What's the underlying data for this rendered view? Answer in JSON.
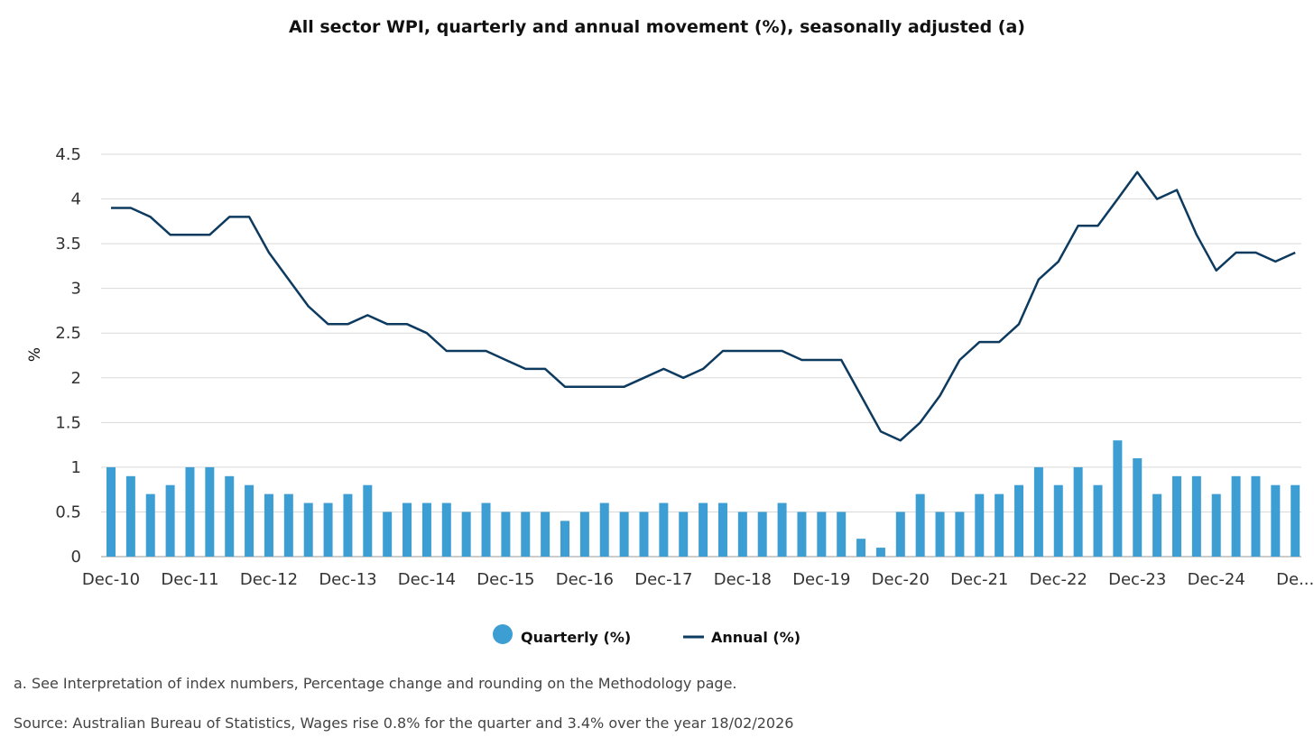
{
  "chart_data": {
    "type": "bar",
    "title": "All sector WPI, quarterly and annual movement (%), seasonally adjusted (a)",
    "ylabel": "%",
    "ylim": [
      0,
      4.5
    ],
    "yticks": [
      "0",
      "0.5",
      "1",
      "1.5",
      "2",
      "2.5",
      "3",
      "3.5",
      "4",
      "4.5"
    ],
    "grid": true,
    "legend_position": "bottom-center",
    "x_tick_labels": [
      "Dec-10",
      "Dec-11",
      "Dec-12",
      "Dec-13",
      "Dec-14",
      "Dec-15",
      "Dec-16",
      "Dec-17",
      "Dec-18",
      "Dec-19",
      "Dec-20",
      "Dec-21",
      "Dec-22",
      "Dec-23",
      "Dec-24",
      "De..."
    ],
    "series": [
      {
        "name": "Quarterly (%)",
        "type": "bar",
        "color": "#3d9ed4",
        "values": [
          1.0,
          0.9,
          0.7,
          0.8,
          1.0,
          1.0,
          0.9,
          0.8,
          0.7,
          0.7,
          0.6,
          0.6,
          0.7,
          0.8,
          0.5,
          0.6,
          0.6,
          0.6,
          0.5,
          0.6,
          0.5,
          0.5,
          0.5,
          0.4,
          0.5,
          0.6,
          0.5,
          0.5,
          0.6,
          0.5,
          0.6,
          0.6,
          0.5,
          0.5,
          0.6,
          0.5,
          0.5,
          0.5,
          0.2,
          0.1,
          0.5,
          0.7,
          0.5,
          0.5,
          0.7,
          0.7,
          0.8,
          1.0,
          0.8,
          1.0,
          0.8,
          1.3,
          1.1,
          0.7,
          0.9,
          0.9,
          0.7,
          0.9,
          0.9,
          0.8,
          0.8
        ]
      },
      {
        "name": "Annual (%)",
        "type": "line",
        "color": "#0d3a5f",
        "values": [
          3.9,
          3.9,
          3.8,
          3.6,
          3.6,
          3.6,
          3.8,
          3.8,
          3.4,
          3.1,
          2.8,
          2.6,
          2.6,
          2.7,
          2.6,
          2.6,
          2.5,
          2.3,
          2.3,
          2.3,
          2.2,
          2.1,
          2.1,
          1.9,
          1.9,
          1.9,
          1.9,
          2.0,
          2.1,
          2.0,
          2.1,
          2.3,
          2.3,
          2.3,
          2.3,
          2.2,
          2.2,
          2.2,
          1.8,
          1.4,
          1.3,
          1.5,
          1.8,
          2.2,
          2.4,
          2.4,
          2.6,
          3.1,
          3.3,
          3.7,
          3.7,
          4.0,
          4.3,
          4.0,
          4.1,
          3.6,
          3.2,
          3.4,
          3.4,
          3.3,
          3.4
        ]
      }
    ]
  },
  "footnotes": {
    "note_a": "a. See Interpretation of index numbers, Percentage change and rounding on the Methodology page.",
    "source": "Source: Australian Bureau of Statistics, Wages rise 0.8% for the quarter and 3.4% over the year 18/02/2026"
  }
}
